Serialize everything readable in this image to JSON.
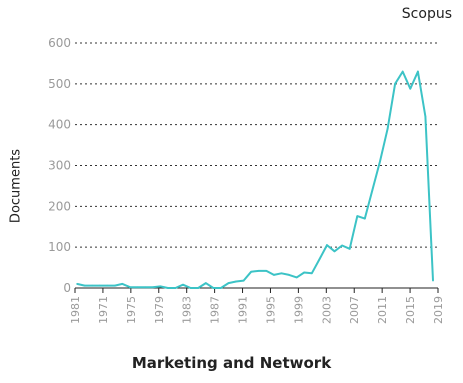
{
  "brand": "Scopus",
  "chart_data": {
    "type": "line",
    "title": "Marketing and Network",
    "xlabel": "",
    "ylabel": "Documents",
    "ylim": [
      0,
      600
    ],
    "y_ticks": [
      0,
      100,
      200,
      300,
      400,
      500,
      600
    ],
    "x_tick_labels": [
      "1981",
      "1971",
      "1975",
      "1979",
      "1983",
      "1987",
      "1991",
      "1995",
      "1999",
      "2003",
      "2007",
      "2011",
      "2015",
      "2019"
    ],
    "grid": true,
    "line_color": "#3cc3c6",
    "series": [
      {
        "values": [
          10,
          6,
          6,
          6,
          6,
          6,
          10,
          2,
          2,
          2,
          2,
          4,
          0,
          0,
          8,
          0,
          0,
          12,
          0,
          0,
          12,
          16,
          18,
          40,
          42,
          42,
          32,
          36,
          32,
          26,
          38,
          36,
          70,
          105,
          90,
          104,
          96,
          176,
          170,
          240,
          310,
          390,
          500,
          530,
          488,
          530,
          420,
          18
        ]
      }
    ]
  }
}
